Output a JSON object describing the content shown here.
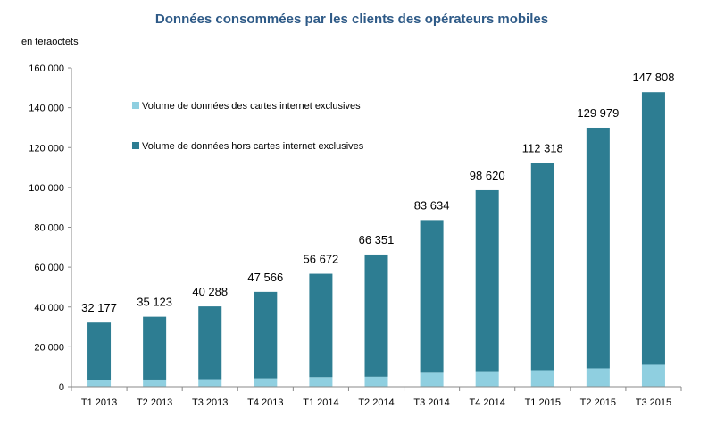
{
  "chart_data": {
    "type": "bar",
    "stacked": true,
    "title": "Données consommées par les clients des opérateurs mobiles",
    "ylabel": "en teraoctets",
    "xlabel": "",
    "ylim": [
      0,
      160000
    ],
    "yticks": [
      0,
      20000,
      40000,
      60000,
      80000,
      100000,
      120000,
      140000,
      160000
    ],
    "ytick_labels": [
      "0",
      "20 000",
      "40 000",
      "60 000",
      "80 000",
      "100 000",
      "120 000",
      "140 000",
      "160 000"
    ],
    "grid": false,
    "legend_position": "top-left",
    "categories": [
      "T1 2013",
      "T2 2013",
      "T3 2013",
      "T4 2013",
      "T1 2014",
      "T2 2014",
      "T3 2014",
      "T4 2014",
      "T1 2015",
      "T2 2015",
      "T3 2015"
    ],
    "totals": [
      32177,
      35123,
      40288,
      47566,
      56672,
      66351,
      83634,
      98620,
      112318,
      129979,
      147808
    ],
    "total_labels": [
      "32 177",
      "35 123",
      "40 288",
      "47 566",
      "56 672",
      "66 351",
      "83 634",
      "98 620",
      "112 318",
      "129 979",
      "147 808"
    ],
    "series": [
      {
        "name": "Volume de données des cartes internet exclusives",
        "color": "#8fcfe0",
        "values": [
          3500,
          3600,
          3800,
          4200,
          4800,
          5000,
          7000,
          7800,
          8300,
          9200,
          11000
        ]
      },
      {
        "name": "Volume de données hors cartes internet exclusives",
        "color": "#2d7d92",
        "values": [
          28677,
          31523,
          36488,
          43366,
          51872,
          61351,
          76634,
          90820,
          104018,
          120779,
          136808
        ]
      }
    ]
  }
}
